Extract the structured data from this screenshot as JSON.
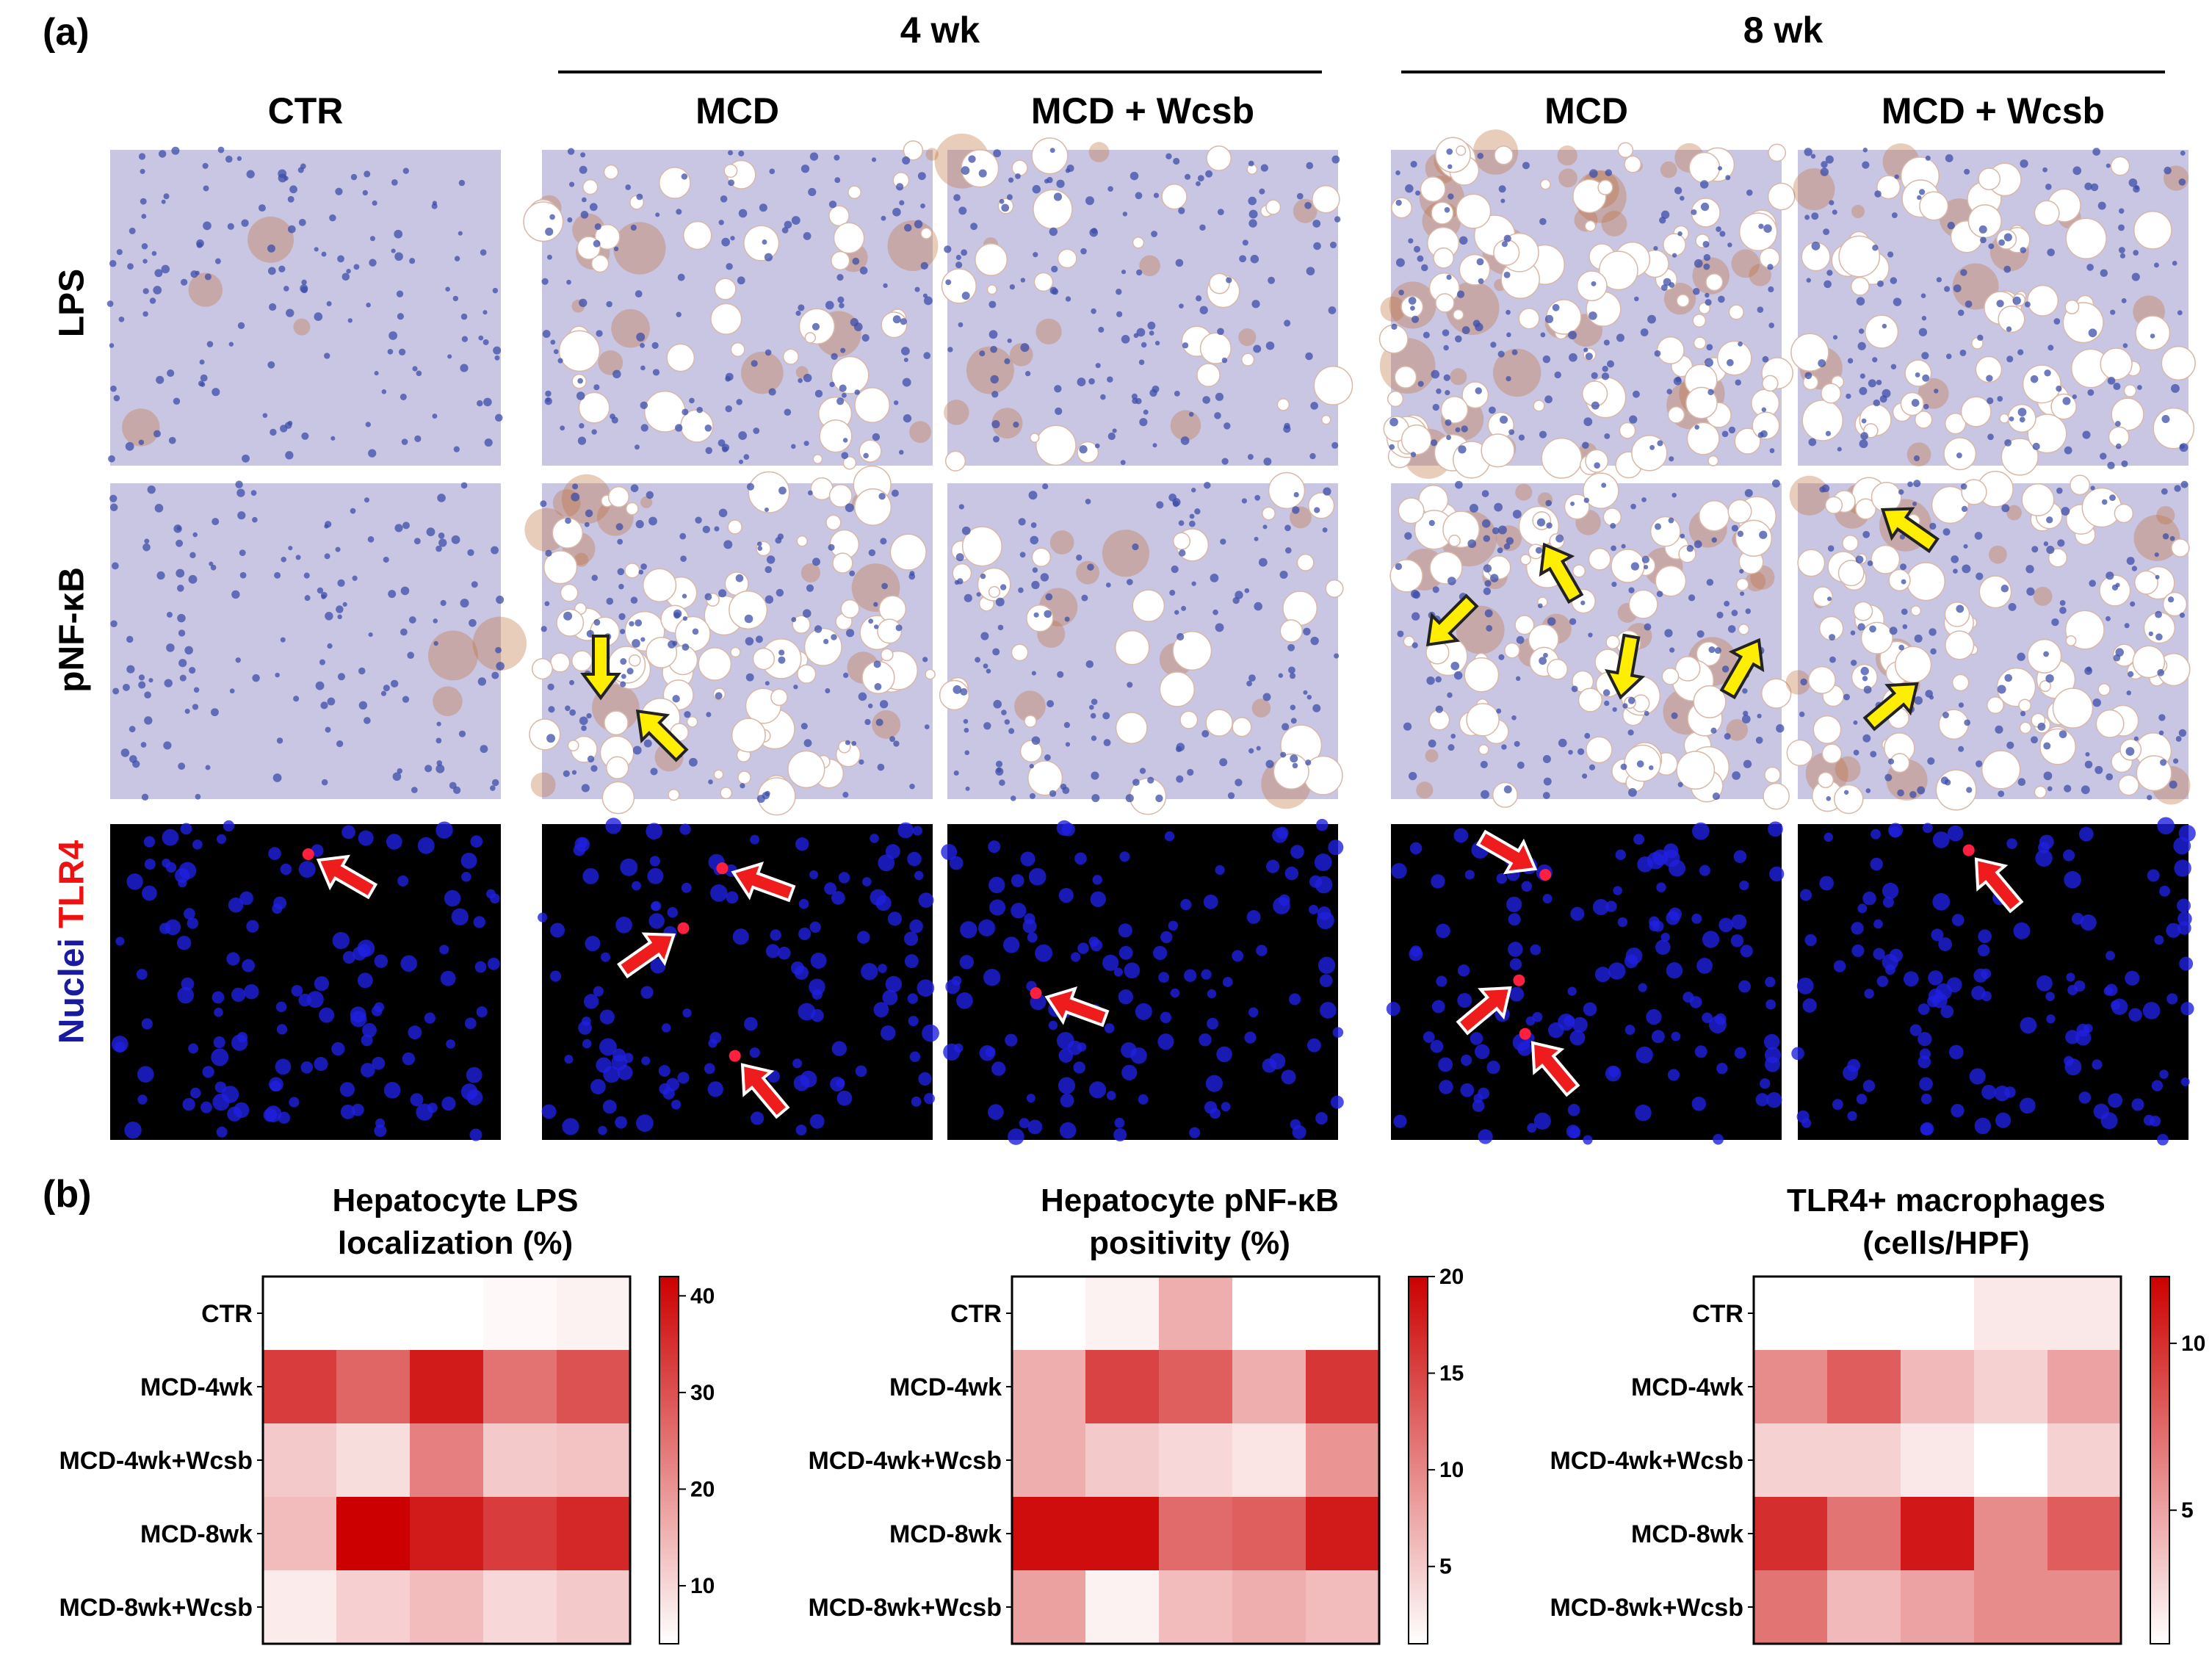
{
  "figure": {
    "panel_a_label": "(a)",
    "panel_b_label": "(b)",
    "time_groups": [
      {
        "label": "4 wk"
      },
      {
        "label": "8 wk"
      }
    ],
    "columns": [
      "CTR",
      "MCD",
      "MCD + Wcsb",
      "MCD",
      "MCD + Wcsb"
    ],
    "rows": {
      "lps": "LPS",
      "pnfkb": "pNF-κB",
      "tlr4_nuclei": "Nuclei",
      "tlr4_marker": "TLR4"
    },
    "colors": {
      "ihc_background": "#c9c6e3",
      "lipid_droplet": "#ffffff",
      "nucleus_ihc": "#3c4da8",
      "brown_stain": "#c0703c",
      "fluor_background": "#000000",
      "fluor_nucleus": "#1f1fe0",
      "fluor_tlr4": "#ff2040",
      "arrow_yellow": "#ffee00",
      "arrow_red": "#ee1c1c"
    }
  },
  "chart_data": [
    {
      "type": "heatmap",
      "title": "Hepatocyte LPS localization (%)",
      "title_lines": [
        "Hepatocyte LPS",
        "localization (%)"
      ],
      "rows": [
        "CTR",
        "MCD-4wk",
        "MCD-4wk+Wcsb",
        "MCD-8wk",
        "MCD-8wk+Wcsb"
      ],
      "values": [
        [
          3,
          3,
          1,
          5,
          6
        ],
        [
          33,
          27,
          38,
          25,
          30
        ],
        [
          12,
          9,
          23,
          12,
          13
        ],
        [
          14,
          42,
          38,
          33,
          36
        ],
        [
          7,
          11,
          14,
          10,
          12
        ]
      ],
      "colorbar_range": [
        4,
        42
      ],
      "colorbar_ticks": [
        10,
        20,
        30,
        40
      ]
    },
    {
      "type": "heatmap",
      "title": "Hepatocyte pNF-κB positivity (%)",
      "title_lines": [
        "Hepatocyte pNF-κB",
        "positivity (%)"
      ],
      "rows": [
        "CTR",
        "MCD-4wk",
        "MCD-4wk+Wcsb",
        "MCD-8wk",
        "MCD-8wk+Wcsb"
      ],
      "values": [
        [
          1,
          2,
          7,
          1,
          1
        ],
        [
          7,
          15,
          13,
          7,
          16
        ],
        [
          7,
          5,
          4,
          3,
          9
        ],
        [
          19,
          19,
          12,
          13,
          18
        ],
        [
          8,
          2,
          6,
          7,
          6
        ]
      ],
      "colorbar_range": [
        1,
        20
      ],
      "colorbar_ticks": [
        5,
        10,
        15,
        20
      ]
    },
    {
      "type": "heatmap",
      "title": "TLR4+ macrophages (cells/HPF)",
      "title_lines": [
        "TLR4+ macrophages",
        "(cells/HPF)"
      ],
      "rows": [
        "CTR",
        "MCD-4wk",
        "MCD-4wk+Wcsb",
        "MCD-8wk",
        "MCD-8wk+Wcsb"
      ],
      "values": [
        [
          1,
          1,
          1,
          2,
          2
        ],
        [
          6,
          8,
          4,
          3,
          5
        ],
        [
          3,
          3,
          2,
          1,
          3
        ],
        [
          10,
          7,
          11,
          6,
          8
        ],
        [
          7,
          4,
          5,
          6,
          6
        ]
      ],
      "colorbar_range": [
        1,
        12
      ],
      "colorbar_ticks": [
        5,
        10
      ]
    }
  ]
}
